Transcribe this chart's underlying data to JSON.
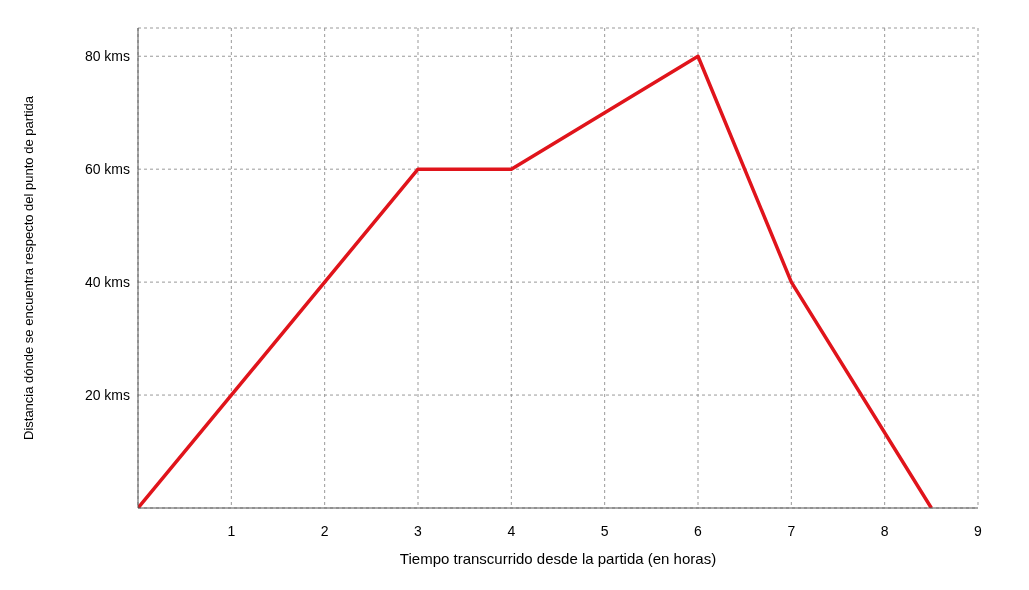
{
  "chart_data": {
    "type": "line",
    "xlabel": "Tiempo transcurrido desde la partida (en horas)",
    "ylabel": "Distancia dónde se encuentra respecto del punto de partida",
    "x": [
      0,
      3,
      4,
      6,
      7,
      8.5
    ],
    "series": [
      {
        "color": "#e0141b",
        "values": [
          0,
          60,
          60,
          80,
          40,
          0
        ]
      }
    ],
    "xlim": [
      0,
      9
    ],
    "xticks": [
      1,
      2,
      3,
      4,
      5,
      6,
      7,
      8,
      9
    ],
    "ylim": [
      0,
      85
    ],
    "yticks": [
      {
        "value": 20,
        "label": "20 kms"
      },
      {
        "value": 40,
        "label": "40 kms"
      },
      {
        "value": 60,
        "label": "60 kms"
      },
      {
        "value": 80,
        "label": "80 kms"
      }
    ],
    "grid": true,
    "marker": "none",
    "line_style": "solid"
  }
}
